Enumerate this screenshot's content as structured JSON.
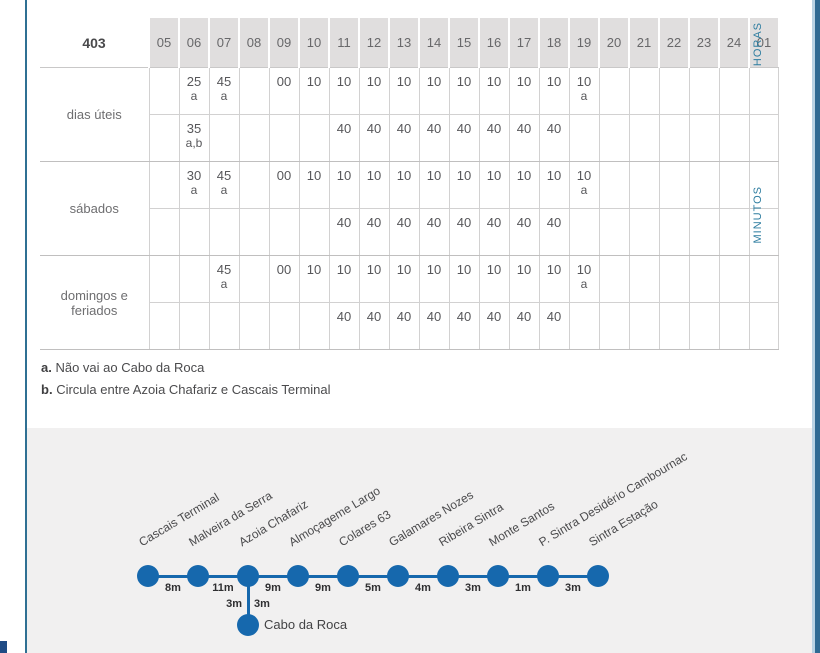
{
  "table": {
    "route_number": "403",
    "hours": [
      "05",
      "06",
      "07",
      "08",
      "09",
      "10",
      "11",
      "12",
      "13",
      "14",
      "15",
      "16",
      "17",
      "18",
      "19",
      "20",
      "21",
      "22",
      "23",
      "24",
      "01"
    ],
    "hours_axis_label": "HORAS",
    "minutes_axis_label": "MINUTOS",
    "day_groups": [
      {
        "label": "dias úteis",
        "rows": [
          [
            "",
            "25 a",
            "45 a",
            "",
            "00",
            "10",
            "10",
            "10",
            "10",
            "10",
            "10",
            "10",
            "10",
            "10",
            "10 a",
            "",
            "",
            "",
            "",
            "",
            ""
          ],
          [
            "",
            "35 a,b",
            "",
            "",
            "",
            "",
            "40",
            "40",
            "40",
            "40",
            "40",
            "40",
            "40",
            "40",
            "",
            "",
            "",
            "",
            "",
            "",
            ""
          ]
        ]
      },
      {
        "label": "sábados",
        "rows": [
          [
            "",
            "30 a",
            "45 a",
            "",
            "00",
            "10",
            "10",
            "10",
            "10",
            "10",
            "10",
            "10",
            "10",
            "10",
            "10 a",
            "",
            "",
            "",
            "",
            "",
            ""
          ],
          [
            "",
            "",
            "",
            "",
            "",
            "",
            "40",
            "40",
            "40",
            "40",
            "40",
            "40",
            "40",
            "40",
            "",
            "",
            "",
            "",
            "",
            "",
            ""
          ]
        ]
      },
      {
        "label": "domingos e feriados",
        "rows": [
          [
            "",
            "",
            "45 a",
            "",
            "00",
            "10",
            "10",
            "10",
            "10",
            "10",
            "10",
            "10",
            "10",
            "10",
            "10 a",
            "",
            "",
            "",
            "",
            "",
            ""
          ],
          [
            "",
            "",
            "",
            "",
            "",
            "",
            "40",
            "40",
            "40",
            "40",
            "40",
            "40",
            "40",
            "40",
            "",
            "",
            "",
            "",
            "",
            "",
            ""
          ]
        ]
      }
    ]
  },
  "notes": [
    {
      "key": "a.",
      "text": "Não vai ao Cabo da Roca"
    },
    {
      "key": "b.",
      "text": "Circula entre Azoia Chafariz e Cascais Terminal"
    }
  ],
  "diagram": {
    "stops": [
      "Cascais Terminal",
      "Malveira da Serra",
      "Azoia Chafariz",
      "Almoçageme Largo",
      "Colares 63",
      "Galamares Nozes",
      "Ribeira Sintra",
      "Monte Santos",
      "P. Sintra Desidério Cambournac",
      "Sintra Estação"
    ],
    "segment_times": [
      "8m",
      "11m",
      "9m",
      "9m",
      "5m",
      "4m",
      "3m",
      "1m",
      "3m"
    ],
    "branch": {
      "from_stop": "Azoia Chafariz",
      "stop": "Cabo da Roca",
      "times": [
        "3m",
        "3m"
      ]
    }
  },
  "colors": {
    "route_blue": "#1668ad",
    "axis_label_teal": "#2e7da0",
    "frame_blue_dark": "#2f6a93",
    "frame_blue_light": "#b9d3e4",
    "header_gray": "#e0dede",
    "panel_gray": "#f1f0f0"
  }
}
